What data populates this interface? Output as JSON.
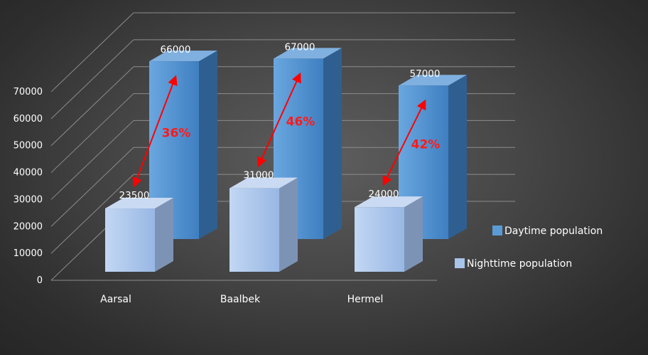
{
  "colors": {
    "daytime": "#5b9bd5",
    "nighttime": "#a9c4ea",
    "arrow": "#ff0000",
    "gridline": "#8c8c8c",
    "text": "#ffffff"
  },
  "chart_data": {
    "type": "bar",
    "categories": [
      "Aarsal",
      "Baalbek",
      "Hermel"
    ],
    "series": [
      {
        "name": "Daytime population",
        "values": [
          66000,
          67000,
          57000
        ]
      },
      {
        "name": "Nighttime population",
        "values": [
          23500,
          31000,
          24000
        ]
      }
    ],
    "ylim": [
      0,
      70000
    ],
    "yticks": [
      0,
      10000,
      20000,
      30000,
      40000,
      50000,
      60000,
      70000
    ],
    "annotations": [
      "36%",
      "46%",
      "42%"
    ],
    "grid": true,
    "legend": "right",
    "style": "3d-clustered-column"
  }
}
